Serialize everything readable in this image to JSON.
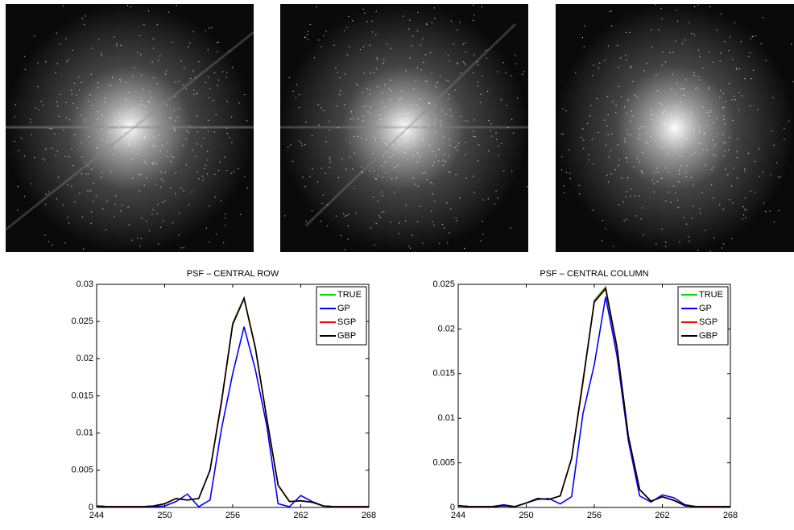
{
  "chart_data": [
    {
      "type": "line",
      "title": "PSF – CENTRAL ROW",
      "x": [
        244,
        245,
        246,
        247,
        248,
        249,
        250,
        251,
        252,
        253,
        254,
        255,
        256,
        257,
        258,
        259,
        260,
        261,
        262,
        263,
        264,
        265,
        266,
        267,
        268
      ],
      "xlim": [
        244,
        268
      ],
      "xticks": [
        244,
        250,
        256,
        262,
        268
      ],
      "ylim": [
        0,
        0.03
      ],
      "yticks": [
        0,
        0.005,
        0.01,
        0.015,
        0.02,
        0.025,
        0.03
      ],
      "legend": "upper right",
      "series": [
        {
          "name": "TRUE",
          "color": "#00e000",
          "values": [
            0.0002,
            0.0001,
            0.0001,
            0.0001,
            0.0001,
            0.0002,
            0.0005,
            0.0012,
            0.001,
            0.0012,
            0.005,
            0.014,
            0.0248,
            0.0282,
            0.0215,
            0.012,
            0.003,
            0.0008,
            0.0009,
            0.0007,
            0.0002,
            0.0001,
            0.0001,
            0.0001,
            0.0001
          ]
        },
        {
          "name": "GP",
          "color": "#0000ff",
          "values": [
            0.0002,
            0.0001,
            0.0001,
            0.0001,
            0.0001,
            0.0001,
            0.0002,
            0.0008,
            0.0018,
            0.0001,
            0.001,
            0.0105,
            0.018,
            0.0243,
            0.0185,
            0.011,
            0.0005,
            0.0001,
            0.0016,
            0.0008,
            0.0002,
            0.0001,
            0.0001,
            0.0001,
            0.0001
          ]
        },
        {
          "name": "SGP",
          "color": "#ff0000",
          "values": [
            0.0002,
            0.0001,
            0.0001,
            0.0001,
            0.0001,
            0.0002,
            0.0005,
            0.0012,
            0.001,
            0.0012,
            0.005,
            0.014,
            0.0247,
            0.0281,
            0.0215,
            0.012,
            0.003,
            0.0008,
            0.0009,
            0.0007,
            0.0002,
            0.0001,
            0.0001,
            0.0001,
            0.0001
          ]
        },
        {
          "name": "GBP",
          "color": "#000000",
          "values": [
            0.0002,
            0.0001,
            0.0001,
            0.0001,
            0.0001,
            0.0002,
            0.0005,
            0.0012,
            0.001,
            0.0012,
            0.005,
            0.0142,
            0.0246,
            0.0281,
            0.0214,
            0.012,
            0.003,
            0.0008,
            0.0009,
            0.0007,
            0.0002,
            0.0001,
            0.0001,
            0.0001,
            0.0001
          ]
        }
      ]
    },
    {
      "type": "line",
      "title": "PSF – CENTRAL COLUMN",
      "x": [
        244,
        245,
        246,
        247,
        248,
        249,
        250,
        251,
        252,
        253,
        254,
        255,
        256,
        257,
        258,
        259,
        260,
        261,
        262,
        263,
        264,
        265,
        266,
        267,
        268
      ],
      "xlim": [
        244,
        268
      ],
      "xticks": [
        244,
        250,
        256,
        262,
        268
      ],
      "ylim": [
        0,
        0.025
      ],
      "yticks": [
        0,
        0.005,
        0.01,
        0.015,
        0.02,
        0.025
      ],
      "legend": "upper right",
      "series": [
        {
          "name": "TRUE",
          "color": "#00e000",
          "values": [
            0.0002,
            0.0001,
            0.0001,
            0.0001,
            0.0002,
            0.0001,
            0.0005,
            0.001,
            0.0009,
            0.0013,
            0.0055,
            0.014,
            0.0232,
            0.0247,
            0.018,
            0.008,
            0.002,
            0.0007,
            0.0012,
            0.0008,
            0.0002,
            0.0001,
            0.0001,
            0.0001,
            0.0001
          ]
        },
        {
          "name": "GP",
          "color": "#0000ff",
          "values": [
            0.0002,
            0.0001,
            0.0001,
            0.0001,
            0.0003,
            0.0001,
            0.0005,
            0.0009,
            0.001,
            0.0004,
            0.0012,
            0.0105,
            0.016,
            0.0236,
            0.017,
            0.0075,
            0.0013,
            0.0006,
            0.0014,
            0.0011,
            0.0003,
            0.0001,
            0.0001,
            0.0001,
            0.0001
          ]
        },
        {
          "name": "SGP",
          "color": "#ff0000",
          "values": [
            0.0002,
            0.0001,
            0.0001,
            0.0001,
            0.0002,
            0.0001,
            0.0005,
            0.001,
            0.0009,
            0.0013,
            0.0055,
            0.014,
            0.0231,
            0.0246,
            0.018,
            0.008,
            0.002,
            0.0007,
            0.0012,
            0.0008,
            0.0002,
            0.0001,
            0.0001,
            0.0001,
            0.0001
          ]
        },
        {
          "name": "GBP",
          "color": "#000000",
          "values": [
            0.0002,
            0.0001,
            0.0001,
            0.0001,
            0.0002,
            0.0001,
            0.0005,
            0.001,
            0.0009,
            0.0013,
            0.0055,
            0.0142,
            0.023,
            0.0245,
            0.0179,
            0.008,
            0.002,
            0.0007,
            0.0012,
            0.0008,
            0.0002,
            0.0001,
            0.0001,
            0.0001,
            0.0001
          ]
        }
      ]
    }
  ]
}
